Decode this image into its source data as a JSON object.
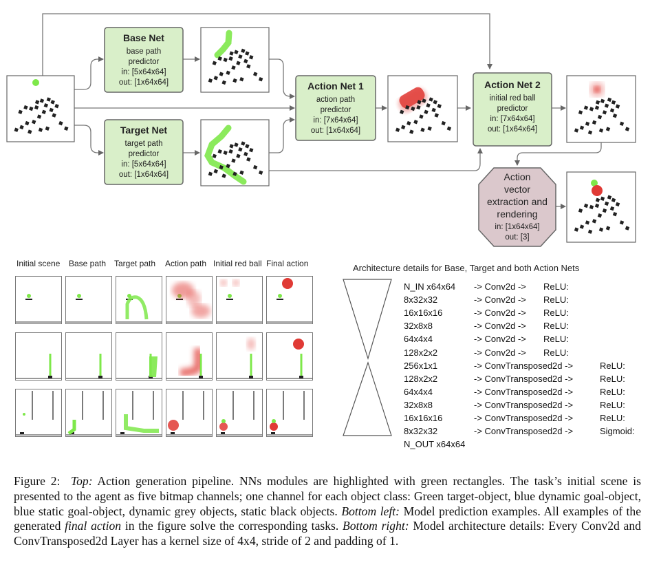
{
  "pipeline": {
    "base_net": {
      "title": "Base Net",
      "lines": [
        "base path",
        "predictor",
        "in: [5x64x64]",
        "out: [1x64x64]"
      ]
    },
    "target_net": {
      "title": "Target Net",
      "lines": [
        "target path",
        "predictor",
        "in: [5x64x64]",
        "out: [1x64x64]"
      ]
    },
    "action_net_1": {
      "title": "Action Net 1",
      "lines": [
        "action path",
        "predictor",
        "in: [7x64x64]",
        "out: [1x64x64]"
      ]
    },
    "action_net_2": {
      "title": "Action Net 2",
      "lines": [
        "initial red ball",
        "predictor",
        "in: [7x64x64]",
        "out: [1x64x64]"
      ]
    },
    "extraction": {
      "lines": [
        "Action",
        "vector",
        "extraction and",
        "rendering"
      ],
      "small_lines": [
        "in: [1x64x64]",
        "out: [3]"
      ]
    },
    "colors": {
      "net_fill": "#d9efc9",
      "net_stroke": "#666666",
      "hex_fill": "#dbc8cc",
      "path_green": "#7ee84a",
      "ball_red": "#e03a35",
      "target_green": "#7ee84a"
    }
  },
  "examples": {
    "headers": [
      "Initial scene",
      "Base path",
      "Target path",
      "Action path",
      "Initial red ball",
      "Final action"
    ]
  },
  "architecture": {
    "title": "Architecture details for Base, Target and both Action Nets",
    "rows": [
      {
        "shape": "N_IN x64x64",
        "op": "-> Conv2d ->",
        "act": "ReLU:"
      },
      {
        "shape": "8x32x32",
        "op": "-> Conv2d ->",
        "act": "ReLU:"
      },
      {
        "shape": "16x16x16",
        "op": "-> Conv2d ->",
        "act": "ReLU:"
      },
      {
        "shape": "32x8x8",
        "op": "-> Conv2d ->",
        "act": "ReLU:"
      },
      {
        "shape": "64x4x4",
        "op": "-> Conv2d ->",
        "act": "ReLU:"
      },
      {
        "shape": "128x2x2",
        "op": "-> Conv2d ->",
        "act": "ReLU:"
      },
      {
        "shape": "256x1x1",
        "op": "-> ConvTransposed2d ->",
        "act": "ReLU:"
      },
      {
        "shape": "128x2x2",
        "op": "-> ConvTransposed2d ->",
        "act": "ReLU:"
      },
      {
        "shape": "64x4x4",
        "op": "-> ConvTransposed2d ->",
        "act": "ReLU:"
      },
      {
        "shape": "32x8x8",
        "op": "-> ConvTransposed2d ->",
        "act": "ReLU:"
      },
      {
        "shape": "16x16x16",
        "op": "-> ConvTransposed2d ->",
        "act": "ReLU:"
      },
      {
        "shape": "8x32x32",
        "op": "-> ConvTransposed2d ->",
        "act": "Sigmoid:"
      },
      {
        "shape": "N_OUT x64x64",
        "op": "",
        "act": ""
      }
    ]
  },
  "caption": {
    "label": "Figure 2:",
    "top_label": "Top:",
    "top_text": "Action generation pipeline. NNs modules are highlighted with green rectangles. The task’s initial scene is presented to the agent as five bitmap channels; one channel for each object class: Green target-object, blue dynamic goal-object, blue static goal-object, dynamic grey objects, static black objects.",
    "bl_label": "Bottom left:",
    "bl_text_1": "Model prediction examples. All examples of the generated",
    "bl_em": "final action",
    "bl_text_2": "in the figure solve the corresponding tasks.",
    "br_label": "Bottom right:",
    "br_text": "Model architecture details: Every Conv2d and ConvTransposed2d Layer has a kernel size of 4x4, stride of 2 and padding of 1."
  }
}
